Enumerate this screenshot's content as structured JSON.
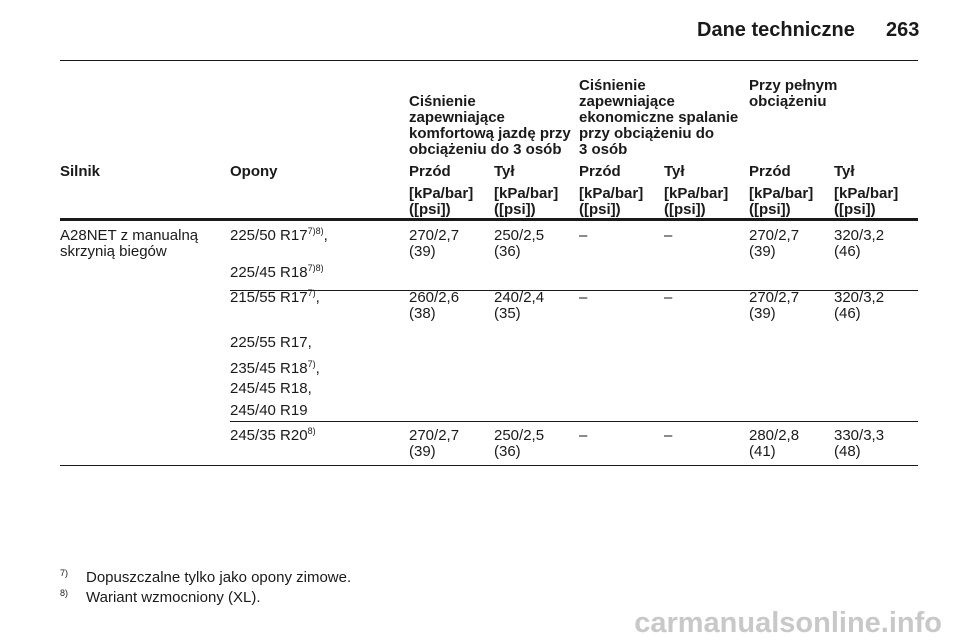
{
  "header": {
    "title": "Dane techniczne",
    "page": "263"
  },
  "table": {
    "group_headers": [
      [
        "Ciśnienie",
        "zapewniające",
        "komfortową jazdę przy",
        "obciążeniu do 3 osób"
      ],
      [
        "Ciśnienie",
        "zapewniające",
        "ekonomiczne spalanie",
        "przy obciążeniu do",
        "3 osób"
      ],
      [
        "Przy pełnym",
        "obciążeniu"
      ]
    ],
    "columns": [
      "Silnik",
      "Opony",
      "Przód",
      "Tył",
      "Przód",
      "Tył",
      "Przód",
      "Tył"
    ],
    "units": [
      [
        "[kPa/bar]",
        "([psi])"
      ],
      [
        "[kPa/bar]",
        "([psi])"
      ],
      [
        "[kPa/bar]",
        "([psi])"
      ],
      [
        "[kPa/bar]",
        "([psi])"
      ],
      [
        "[kPa/bar]",
        "([psi])"
      ],
      [
        "[kPa/bar]",
        "([psi])"
      ]
    ],
    "rows": [
      {
        "engine": [
          "A28NET z manualną",
          "skrzynią biegów"
        ],
        "groups": [
          {
            "tires": [
              {
                "text": "225/50 R17",
                "sup": "7)8)",
                "suffix": ","
              },
              {
                "text": "225/45 R18",
                "sup": "7)8)"
              }
            ],
            "values": [
              [
                "270/2,7",
                "(39)"
              ],
              [
                "250/2,5",
                "(36)"
              ],
              [
                "–"
              ],
              [
                "–"
              ],
              [
                "270/2,7",
                "(39)"
              ],
              [
                "320/3,2",
                "(46)"
              ]
            ]
          },
          {
            "tires": [
              {
                "text": "215/55 R17",
                "sup": "7)",
                "suffix": ","
              },
              {
                "text": "225/55 R17,"
              },
              {
                "text": "235/45 R18",
                "sup": "7)",
                "suffix": ","
              },
              {
                "text": "245/45 R18,"
              },
              {
                "text": "245/40 R19"
              }
            ],
            "values": [
              [
                "260/2,6",
                "(38)"
              ],
              [
                "240/2,4",
                "(35)"
              ],
              [
                "–"
              ],
              [
                "–"
              ],
              [
                "270/2,7",
                "(39)"
              ],
              [
                "320/3,2",
                "(46)"
              ]
            ]
          },
          {
            "tires": [
              {
                "text": "245/35 R20",
                "sup": "8)"
              }
            ],
            "values": [
              [
                "270/2,7",
                "(39)"
              ],
              [
                "250/2,5",
                "(36)"
              ],
              [
                "–"
              ],
              [
                "–"
              ],
              [
                "280/2,8",
                "(41)"
              ],
              [
                "330/3,3",
                "(48)"
              ]
            ]
          }
        ]
      }
    ]
  },
  "footnotes": [
    {
      "mark": "7)",
      "text": "Dopuszczalne tylko jako opony zimowe."
    },
    {
      "mark": "8)",
      "text": "Wariant wzmocniony (XL)."
    }
  ],
  "watermark": "carmanualsonline.info"
}
